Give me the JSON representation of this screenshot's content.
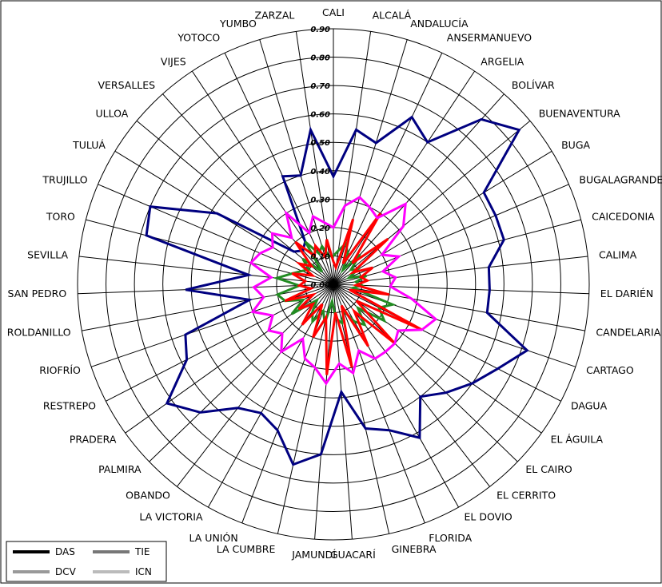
{
  "chart_data": {
    "type": "radar",
    "title": "",
    "categories": [
      "CALI",
      "ALCALÁ",
      "ANDALUCÍA",
      "ANSERMANUEVO",
      "ARGELIA",
      "BOLÍVAR",
      "BUENAVENTURA",
      "BUGA",
      "BUGALAGRANDE",
      "CAICEDONIA",
      "CALIMA",
      "EL DARIÉN",
      "CANDELARIA",
      "CARTAGO",
      "DAGUA",
      "EL ÁGUILA",
      "EL CAIRO",
      "EL CERRITO",
      "EL DOVIO",
      "FLORIDA",
      "GINEBRA",
      "GUACARÍ",
      "JAMUNDÍ",
      "LA CUMBRE",
      "LA UNIÓN",
      "LA VICTORIA",
      "OBANDO",
      "PALMIRA",
      "PRADERA",
      "RESTREPO",
      "RIOFRÍO",
      "ROLDANILLO",
      "SAN PEDRO",
      "SEVILLA",
      "TORO",
      "TRUJILLO",
      "TULUÁ",
      "ULLOA",
      "VERSALLES",
      "VIJES",
      "YOTOCO",
      "YUMBO",
      "ZARZAL"
    ],
    "ticks": [
      "0.00",
      "0.10",
      "0.20",
      "0.30",
      "0.40",
      "0.50",
      "0.60",
      "0.70",
      "0.80",
      "0.90"
    ],
    "rlim": [
      0,
      0.9
    ],
    "grid": true,
    "legend_position": "bottom-left",
    "series": [
      {
        "name": "DAS",
        "color": "#000080",
        "values": [
          0.38,
          0.55,
          0.52,
          0.65,
          0.6,
          0.78,
          0.85,
          0.62,
          0.62,
          0.62,
          0.55,
          0.55,
          0.55,
          0.72,
          0.65,
          0.6,
          0.55,
          0.5,
          0.62,
          0.55,
          0.52,
          0.38,
          0.6,
          0.65,
          0.55,
          0.52,
          0.55,
          0.65,
          0.72,
          0.58,
          0.55,
          0.3,
          0.52,
          0.3,
          0.68,
          0.7,
          0.48,
          0.18,
          0.16,
          0.18,
          0.42,
          0.4,
          0.55
        ]
      },
      {
        "name": "TIE",
        "color": "#228B22",
        "values": [
          0.1,
          0.12,
          0.15,
          0.12,
          0.06,
          0.14,
          0.08,
          0.1,
          0.06,
          0.12,
          0.08,
          0.1,
          0.07,
          0.22,
          0.18,
          0.22,
          0.12,
          0.18,
          0.15,
          0.1,
          0.14,
          0.12,
          0.06,
          0.14,
          0.1,
          0.15,
          0.12,
          0.08,
          0.18,
          0.12,
          0.18,
          0.2,
          0.12,
          0.2,
          0.15,
          0.12,
          0.1,
          0.14,
          0.06,
          0.18,
          0.12,
          0.14,
          0.1
        ]
      },
      {
        "name": "DCV",
        "color": "#FF0000",
        "values": [
          0.08,
          0.06,
          0.24,
          0.08,
          0.3,
          0.1,
          0.25,
          0.08,
          0.15,
          0.1,
          0.12,
          0.08,
          0.2,
          0.06,
          0.35,
          0.1,
          0.3,
          0.12,
          0.25,
          0.08,
          0.3,
          0.1,
          0.32,
          0.12,
          0.2,
          0.08,
          0.18,
          0.1,
          0.15,
          0.08,
          0.18,
          0.08,
          0.12,
          0.1,
          0.15,
          0.08,
          0.14,
          0.1,
          0.2,
          0.12,
          0.15,
          0.1,
          0.16
        ]
      },
      {
        "name": "ICN",
        "color": "#FF00FF",
        "values": [
          0.2,
          0.28,
          0.32,
          0.3,
          0.28,
          0.38,
          0.32,
          0.2,
          0.25,
          0.18,
          0.22,
          0.2,
          0.28,
          0.38,
          0.35,
          0.28,
          0.3,
          0.3,
          0.3,
          0.25,
          0.32,
          0.28,
          0.35,
          0.3,
          0.28,
          0.22,
          0.3,
          0.25,
          0.28,
          0.24,
          0.3,
          0.25,
          0.28,
          0.22,
          0.3,
          0.28,
          0.25,
          0.28,
          0.22,
          0.3,
          0.2,
          0.25,
          0.22
        ]
      }
    ]
  }
}
